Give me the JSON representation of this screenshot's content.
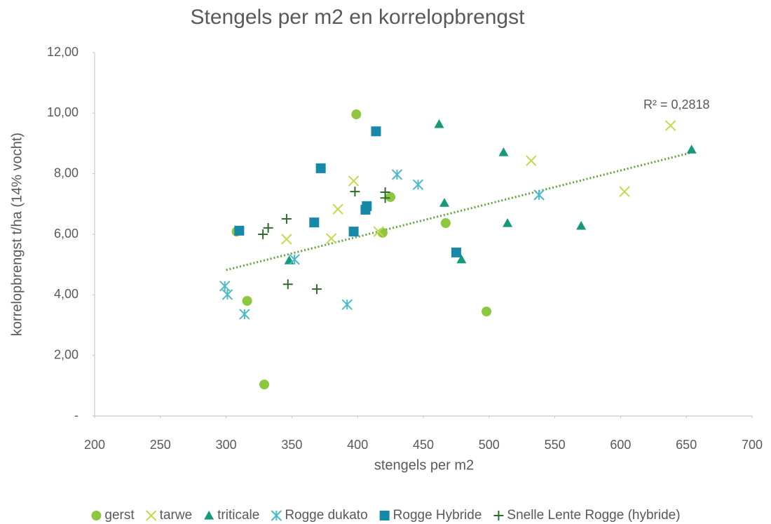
{
  "chart_data": {
    "type": "scatter",
    "title": "Stengels per m2 en korrelopbrengst",
    "x_label": "stengels per m2",
    "y_label": "korrelopbrengst t/ha (14% vocht)",
    "annotation": "R² = 0,2818",
    "xlim": [
      200,
      700
    ],
    "xticks": [
      200,
      250,
      300,
      350,
      400,
      450,
      500,
      550,
      600,
      650,
      700
    ],
    "ylim": [
      0,
      12
    ],
    "yticks": [
      {
        "value": 0,
        "label": "-"
      },
      {
        "value": 2,
        "label": "2,00"
      },
      {
        "value": 4,
        "label": "4,00"
      },
      {
        "value": 6,
        "label": "6,00"
      },
      {
        "value": 8,
        "label": "8,00"
      },
      {
        "value": 10,
        "label": "10,00"
      },
      {
        "value": 12,
        "label": "12,00"
      }
    ],
    "legend": "bottom",
    "series": [
      {
        "name": "gerst",
        "color": "#8dc63f",
        "marker": "circle",
        "x": [
          399,
          308,
          316,
          329,
          425,
          419,
          467,
          498
        ],
        "values": [
          9.96,
          6.09,
          3.8,
          1.04,
          7.23,
          6.05,
          6.37,
          3.45
        ]
      },
      {
        "name": "tarwe",
        "color": "#c3d94b",
        "marker": "x",
        "x": [
          346,
          380,
          385,
          397,
          416,
          532,
          603,
          638
        ],
        "values": [
          5.84,
          5.86,
          6.83,
          7.76,
          6.09,
          8.43,
          7.41,
          9.59
        ]
      },
      {
        "name": "triticale",
        "color": "#17997a",
        "marker": "triangle",
        "x": [
          462,
          511,
          654,
          466,
          514,
          570,
          348,
          479
        ],
        "values": [
          9.64,
          8.71,
          8.8,
          7.04,
          6.37,
          6.28,
          5.14,
          5.17
        ]
      },
      {
        "name": "Rogge dukato",
        "color": "#4bbac8",
        "marker": "asterisk",
        "x": [
          299,
          301,
          314,
          352,
          392,
          430,
          446,
          538
        ],
        "values": [
          4.29,
          4.01,
          3.36,
          5.17,
          3.68,
          7.97,
          7.64,
          7.3
        ]
      },
      {
        "name": "Rogge Hybride",
        "color": "#1689a8",
        "marker": "square",
        "x": [
          310,
          372,
          367,
          397,
          406,
          407,
          414,
          475
        ],
        "values": [
          6.12,
          8.18,
          6.39,
          6.09,
          6.81,
          6.93,
          9.4,
          5.4
        ]
      },
      {
        "name": "Snelle Lente Rogge (hybride)",
        "color": "#2f6b2c",
        "marker": "plus",
        "x": [
          328,
          332,
          346,
          347,
          369,
          398,
          421,
          421
        ],
        "values": [
          6.0,
          6.21,
          6.51,
          4.35,
          4.19,
          7.41,
          7.39,
          7.2
        ]
      }
    ],
    "trendline": {
      "color": "#5fa33a",
      "x": [
        300,
        654
      ],
      "values": [
        4.82,
        8.7
      ]
    }
  }
}
